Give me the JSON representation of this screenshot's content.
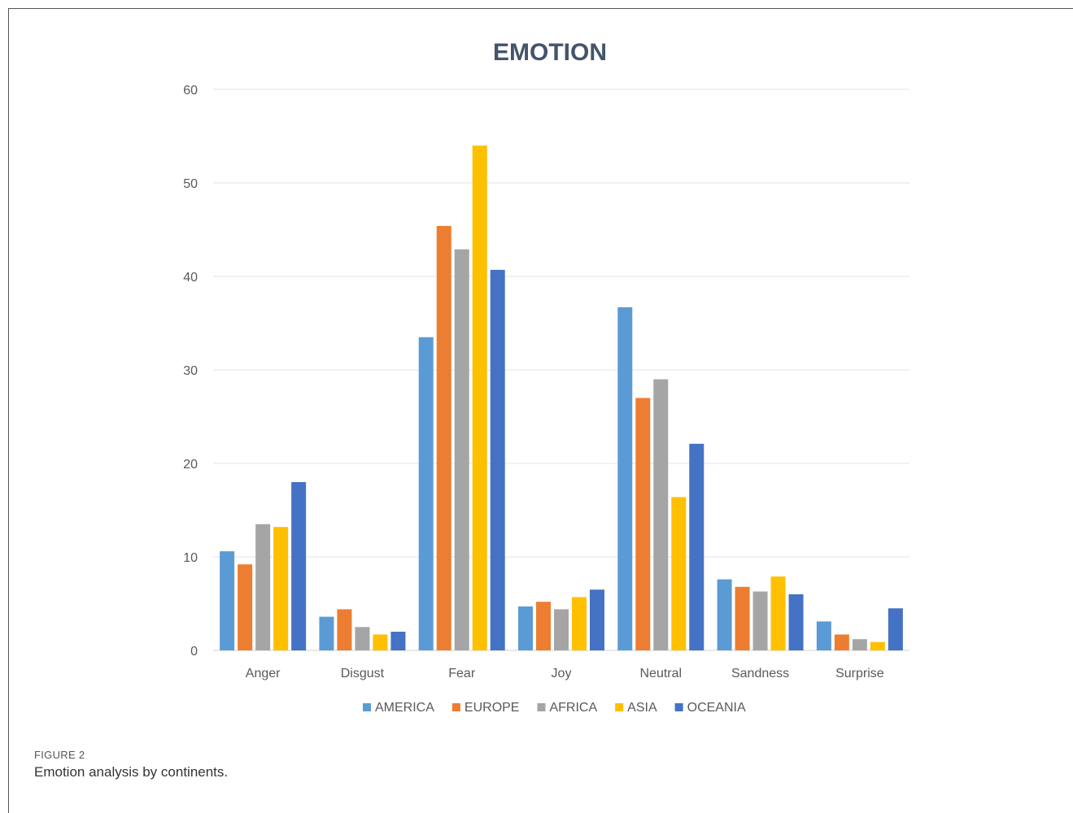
{
  "figure": {
    "label": "FIGURE 2",
    "caption": "Emotion analysis by continents."
  },
  "chart_data": {
    "type": "bar",
    "title": "EMOTION",
    "xlabel": "",
    "ylabel": "",
    "ylim": [
      0,
      60
    ],
    "yticks": [
      0,
      10,
      20,
      30,
      40,
      50,
      60
    ],
    "grid": true,
    "legend_position": "bottom",
    "categories": [
      "Anger",
      "Disgust",
      "Fear",
      "Joy",
      "Neutral",
      "Sandness",
      "Surprise"
    ],
    "series": [
      {
        "name": "AMERICA",
        "color": "#5b9bd5",
        "values": [
          10.6,
          3.6,
          33.5,
          4.7,
          36.7,
          7.6,
          3.1
        ]
      },
      {
        "name": "EUROPE",
        "color": "#ed7d31",
        "values": [
          9.2,
          4.4,
          45.4,
          5.2,
          27.0,
          6.8,
          1.7
        ]
      },
      {
        "name": "AFRICA",
        "color": "#a5a5a5",
        "values": [
          13.5,
          2.5,
          42.9,
          4.4,
          29.0,
          6.3,
          1.2
        ]
      },
      {
        "name": "ASIA",
        "color": "#ffc000",
        "values": [
          13.2,
          1.7,
          54.0,
          5.7,
          16.4,
          7.9,
          0.9
        ]
      },
      {
        "name": "OCEANIA",
        "color": "#4472c4",
        "values": [
          18.0,
          2.0,
          40.7,
          6.5,
          22.1,
          6.0,
          4.5
        ]
      }
    ]
  }
}
